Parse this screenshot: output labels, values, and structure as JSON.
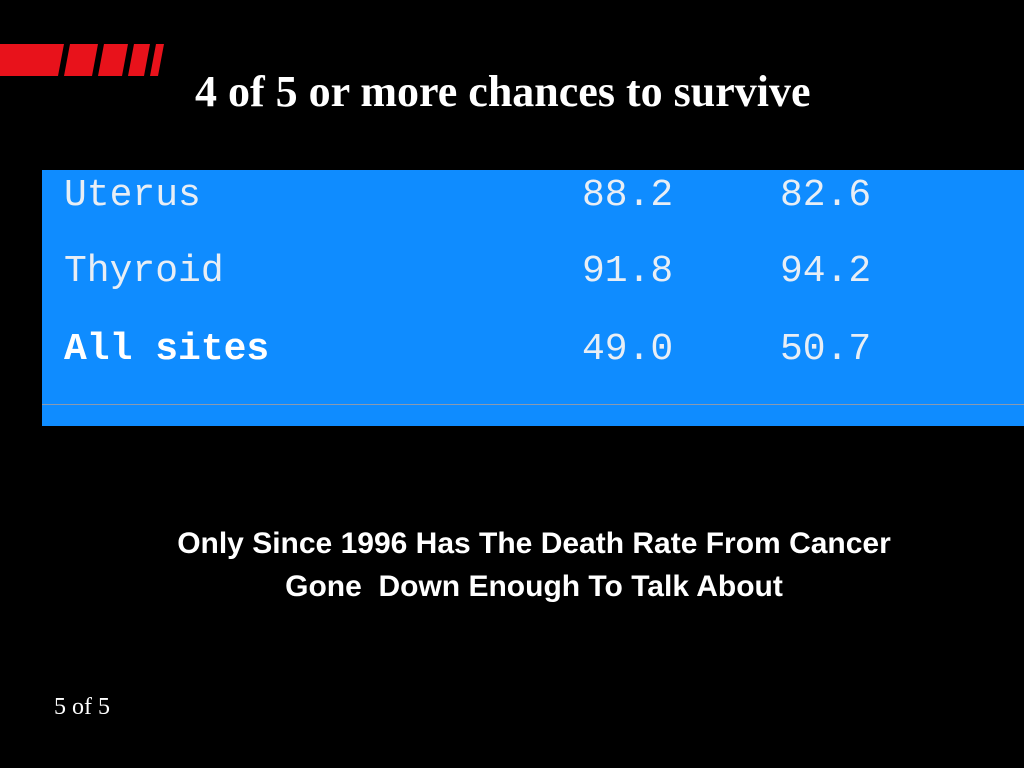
{
  "title": "4 of 5 or more chances to survive",
  "table": {
    "rows": [
      [
        "Uterus",
        "88.2",
        "82.6"
      ],
      [
        "Thyroid",
        "91.8",
        "94.2"
      ],
      [
        "All sites",
        "49.0",
        "50.7"
      ]
    ]
  },
  "caption": {
    "lines": [
      "Only Since 1996 Has The Death Rate From Cancer",
      "Gone  Down Enough To Talk About"
    ]
  },
  "footer": "5 of 5"
}
